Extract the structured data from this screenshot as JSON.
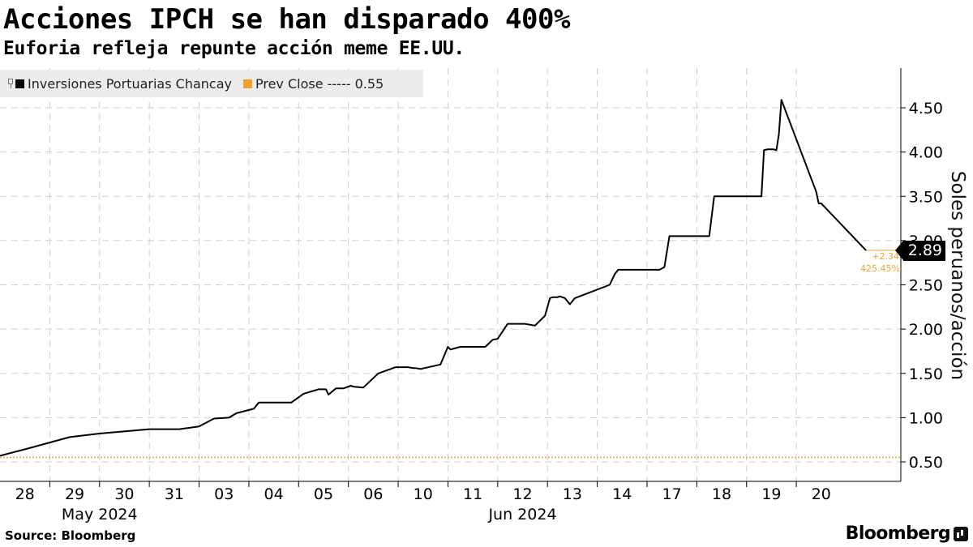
{
  "chart_data": {
    "type": "line",
    "title": "Acciones IPCH se han disparado 400%",
    "subtitle": "Euforia refleja repunte acción meme EE.UU.",
    "ylabel": "Soles peruanos/acción",
    "ylim": [
      0.25,
      4.9
    ],
    "yticks": [
      "4.50",
      "4.00",
      "3.50",
      "3.00",
      "2.50",
      "2.00",
      "1.50",
      "1.00",
      "0.50"
    ],
    "ytick_values": [
      4.5,
      4.0,
      3.5,
      3.0,
      2.5,
      2.0,
      1.5,
      1.0,
      0.5
    ],
    "xlim": [
      0,
      18.1
    ],
    "days": [
      "28",
      "29",
      "30",
      "31",
      "03",
      "04",
      "05",
      "06",
      "10",
      "11",
      "12",
      "13",
      "14",
      "17",
      "18",
      "19",
      "20"
    ],
    "months": [
      {
        "label": "May 2024",
        "center": 2.0
      },
      {
        "label": "Jun 2024",
        "center": 10.5
      }
    ],
    "series": [
      {
        "name": "Inversiones Portuarias Chancay",
        "color": "#000000",
        "x": [
          0,
          0.55,
          1.4,
          2.0,
          3.0,
          3.6,
          4.0,
          4.3,
          4.6,
          4.75,
          5.1,
          5.2,
          5.45,
          5.85,
          6.1,
          6.4,
          6.55,
          6.6,
          6.75,
          6.9,
          7.05,
          7.1,
          7.3,
          7.6,
          7.95,
          8.05,
          8.1,
          8.2,
          8.3,
          8.35,
          8.45,
          8.85,
          9.0,
          9.05,
          9.25,
          9.3,
          9.35,
          9.4,
          9.45,
          9.6,
          9.75,
          9.9,
          10.0,
          10.2,
          10.3,
          10.4,
          10.55,
          10.75,
          10.95,
          11.05,
          11.1,
          11.15,
          11.2,
          11.25,
          11.3,
          11.35,
          11.45,
          11.55,
          12.25,
          12.35,
          12.42,
          13.25,
          13.35,
          13.45,
          14.25,
          14.35,
          14.4,
          15.3,
          15.35,
          15.42,
          15.5,
          15.55,
          15.6,
          15.65,
          15.7,
          16.4,
          16.45,
          16.5,
          17.4
        ],
        "values": [
          0.57,
          0.65,
          0.78,
          0.82,
          0.87,
          0.87,
          0.9,
          0.99,
          1.0,
          1.05,
          1.1,
          1.17,
          1.17,
          1.17,
          1.27,
          1.32,
          1.32,
          1.26,
          1.33,
          1.33,
          1.36,
          1.35,
          1.34,
          1.5,
          1.57,
          1.57,
          1.57,
          1.57,
          1.56,
          1.56,
          1.55,
          1.6,
          1.8,
          1.77,
          1.8,
          1.8,
          1.8,
          1.8,
          1.8,
          1.8,
          1.8,
          1.88,
          1.89,
          2.06,
          2.06,
          2.06,
          2.06,
          2.04,
          2.15,
          2.35,
          2.36,
          2.36,
          2.36,
          2.37,
          2.36,
          2.35,
          2.28,
          2.35,
          2.5,
          2.62,
          2.67,
          2.67,
          2.7,
          3.05,
          3.05,
          3.5,
          3.5,
          3.5,
          4.02,
          4.03,
          4.03,
          4.03,
          4.02,
          4.2,
          4.59,
          3.55,
          3.42,
          3.42,
          2.89
        ]
      }
    ],
    "prev_close": {
      "label": "Prev Close ----- 0.55",
      "value": 0.55,
      "color": "#f0a22a"
    },
    "last_value": "2.89",
    "change_abs": "+2.34",
    "change_pct": "425.45%"
  },
  "source": "Source: Bloomberg",
  "brand": "Bloomberg"
}
